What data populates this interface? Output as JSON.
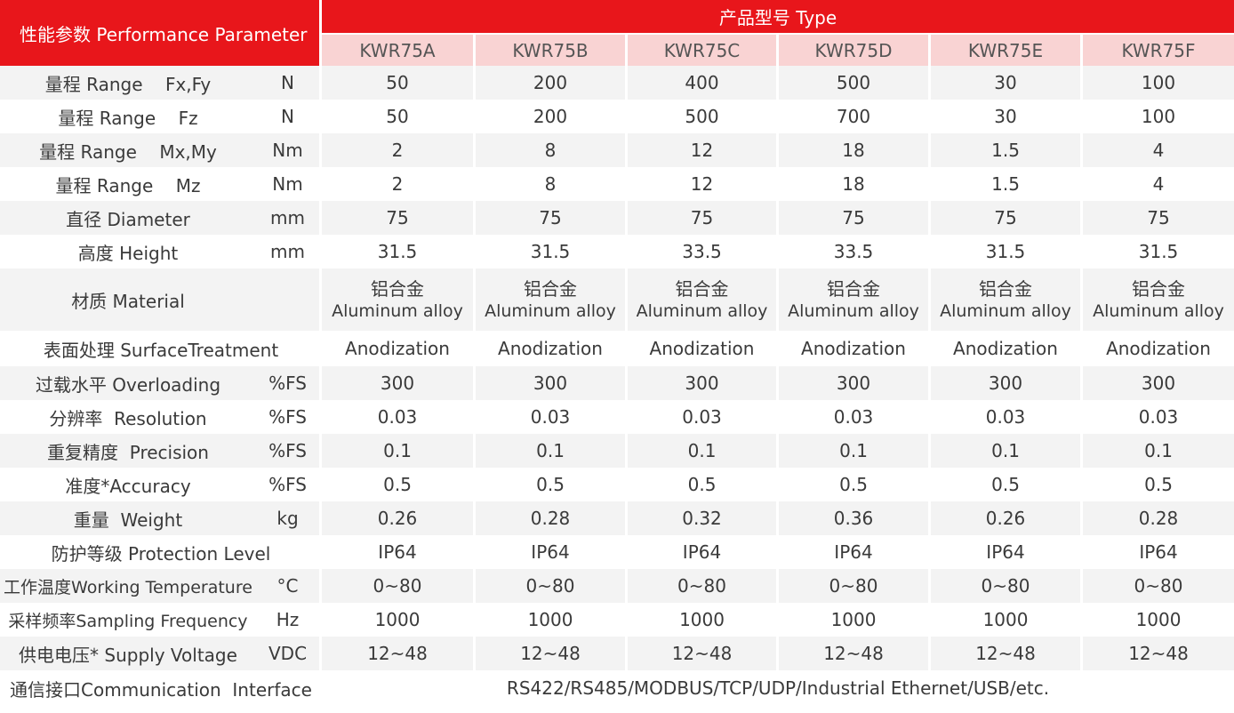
{
  "header": {
    "performance_label": "性能参数 Performance Parameter",
    "type_label": "产品型号 Type",
    "models": [
      "KWR75A",
      "KWR75B",
      "KWR75C",
      "KWR75D",
      "KWR75E",
      "KWR75F"
    ]
  },
  "rows": [
    {
      "label": "量程 Range    Fx,Fy",
      "unit": "N",
      "values": [
        "50",
        "200",
        "400",
        "500",
        "30",
        "100"
      ]
    },
    {
      "label": "量程 Range    Fz",
      "unit": "N",
      "values": [
        "50",
        "200",
        "500",
        "700",
        "30",
        "100"
      ]
    },
    {
      "label": "量程 Range    Mx,My",
      "unit": "Nm",
      "values": [
        "2",
        "8",
        "12",
        "18",
        "1.5",
        "4"
      ]
    },
    {
      "label": "量程 Range    Mz",
      "unit": "Nm",
      "values": [
        "2",
        "8",
        "12",
        "18",
        "1.5",
        "4"
      ]
    },
    {
      "label": "直径 Diameter",
      "unit": "mm",
      "values": [
        "75",
        "75",
        "75",
        "75",
        "75",
        "75"
      ]
    },
    {
      "label": "高度 Height",
      "unit": "mm",
      "values": [
        "31.5",
        "31.5",
        "33.5",
        "33.5",
        "31.5",
        "31.5"
      ]
    }
  ],
  "material": {
    "label": "材质 Material",
    "cn": [
      "铝合金",
      "铝合金",
      "铝合金",
      "铝合金",
      "铝合金",
      "铝合金"
    ],
    "en": [
      "Aluminum alloy",
      "Aluminum alloy",
      "Aluminum alloy",
      "Aluminum alloy",
      "Aluminum alloy",
      "Aluminum alloy"
    ]
  },
  "surface": {
    "label": "表面处理 SurfaceTreatment",
    "values": [
      "Anodization",
      "Anodization",
      "Anodization",
      "Anodization",
      "Anodization",
      "Anodization"
    ]
  },
  "rows2": [
    {
      "label": "过载水平 Overloading",
      "unit": "%FS",
      "values": [
        "300",
        "300",
        "300",
        "300",
        "300",
        "300"
      ]
    },
    {
      "label": "分辨率  Resolution",
      "unit": "%FS",
      "values": [
        "0.03",
        "0.03",
        "0.03",
        "0.03",
        "0.03",
        "0.03"
      ]
    },
    {
      "label": "重复精度  Precision",
      "unit": "%FS",
      "values": [
        "0.1",
        "0.1",
        "0.1",
        "0.1",
        "0.1",
        "0.1"
      ]
    },
    {
      "label": "准度*Accuracy",
      "unit": "%FS",
      "values": [
        "0.5",
        "0.5",
        "0.5",
        "0.5",
        "0.5",
        "0.5"
      ]
    },
    {
      "label": "重量  Weight",
      "unit": "kg",
      "values": [
        "0.26",
        "0.28",
        "0.32",
        "0.36",
        "0.26",
        "0.28"
      ]
    }
  ],
  "protection": {
    "label": "防护等级 Protection Level",
    "values": [
      "IP64",
      "IP64",
      "IP64",
      "IP64",
      "IP64",
      "IP64"
    ]
  },
  "rows3": [
    {
      "label": "工作温度Working Temperature",
      "unit": "°C",
      "values": [
        "0~80",
        "0~80",
        "0~80",
        "0~80",
        "0~80",
        "0~80"
      ]
    },
    {
      "label": "采样频率Sampling Frequency",
      "unit": "Hz",
      "values": [
        "1000",
        "1000",
        "1000",
        "1000",
        "1000",
        "1000"
      ]
    },
    {
      "label": "供电电压* Supply Voltage",
      "unit": "VDC",
      "values": [
        "12~48",
        "12~48",
        "12~48",
        "12~48",
        "12~48",
        "12~48"
      ]
    }
  ],
  "communication": {
    "label": "通信接口Communication  Interface",
    "value": "RS422/RS485/MODBUS/TCP/UDP/Industrial Ethernet/USB/etc."
  }
}
